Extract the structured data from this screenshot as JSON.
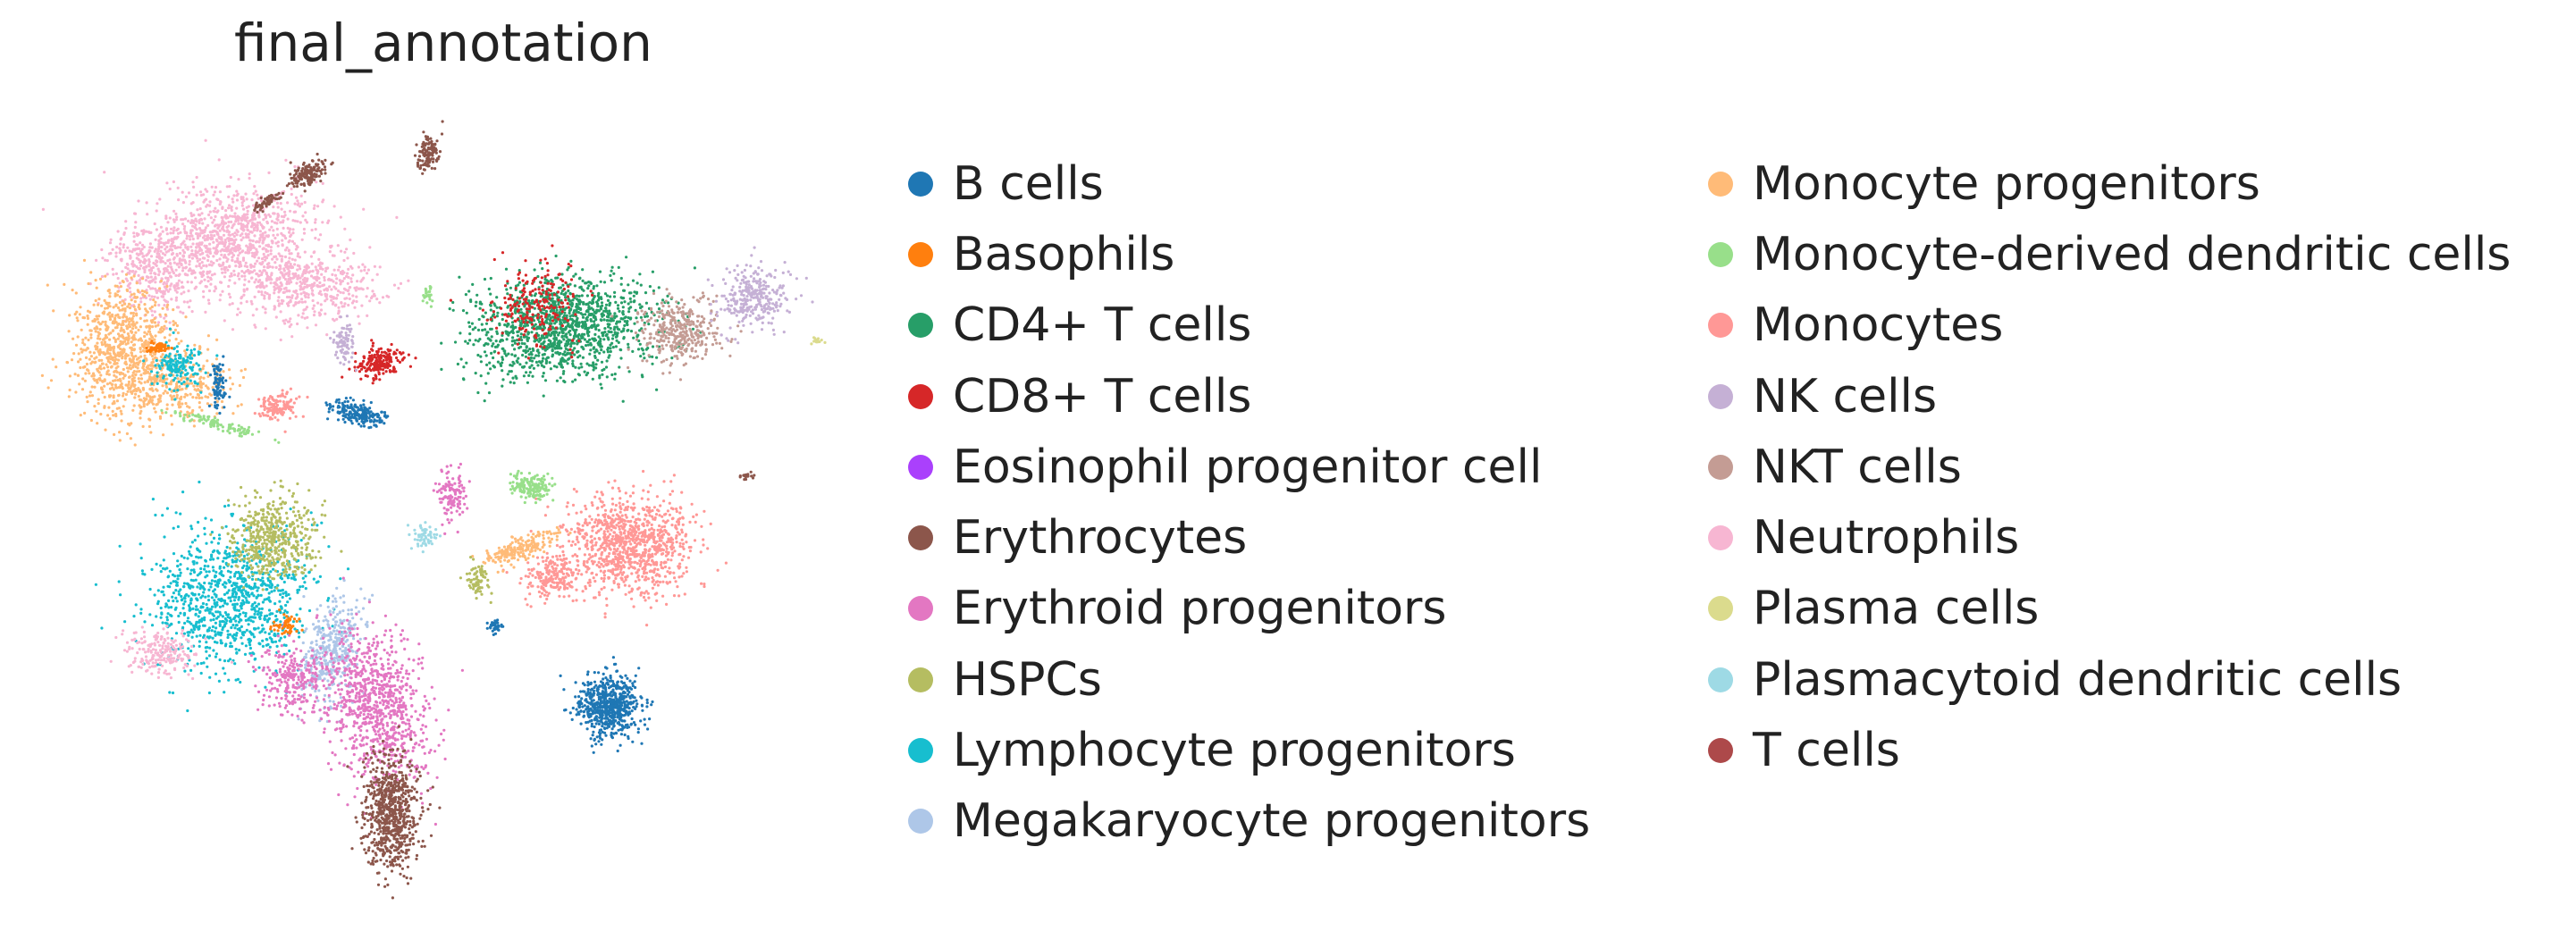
{
  "chart_data": {
    "type": "scatter",
    "title": "final_annotation",
    "xlabel": "",
    "ylabel": "",
    "grid": false,
    "axes_visible": false,
    "legend_placement": "right",
    "legend_columns": 2,
    "categories": [
      {
        "name": "B cells",
        "color": "#1f77b4"
      },
      {
        "name": "Basophils",
        "color": "#ff7f0e"
      },
      {
        "name": "CD4+ T cells",
        "color": "#279e68"
      },
      {
        "name": "CD8+ T cells",
        "color": "#d62728"
      },
      {
        "name": "Eosinophil progenitor cell",
        "color": "#aa40fc"
      },
      {
        "name": "Erythrocytes",
        "color": "#8c564b"
      },
      {
        "name": "Erythroid progenitors",
        "color": "#e377c2"
      },
      {
        "name": "HSPCs",
        "color": "#b5bd61"
      },
      {
        "name": "Lymphocyte progenitors",
        "color": "#17becf"
      },
      {
        "name": "Megakaryocyte progenitors",
        "color": "#aec7e8"
      },
      {
        "name": "Monocyte progenitors",
        "color": "#ffbb78"
      },
      {
        "name": "Monocyte-derived dendritic cells",
        "color": "#98df8a"
      },
      {
        "name": "Monocytes",
        "color": "#ff9896"
      },
      {
        "name": "NK cells",
        "color": "#c5b0d5"
      },
      {
        "name": "NKT cells",
        "color": "#c49c94"
      },
      {
        "name": "Neutrophils",
        "color": "#f7b6d2"
      },
      {
        "name": "Plasma cells",
        "color": "#dbdb8d"
      },
      {
        "name": "Plasmacytoid dendritic cells",
        "color": "#9edae5"
      },
      {
        "name": "T cells",
        "color": "#ad494a"
      }
    ]
  }
}
